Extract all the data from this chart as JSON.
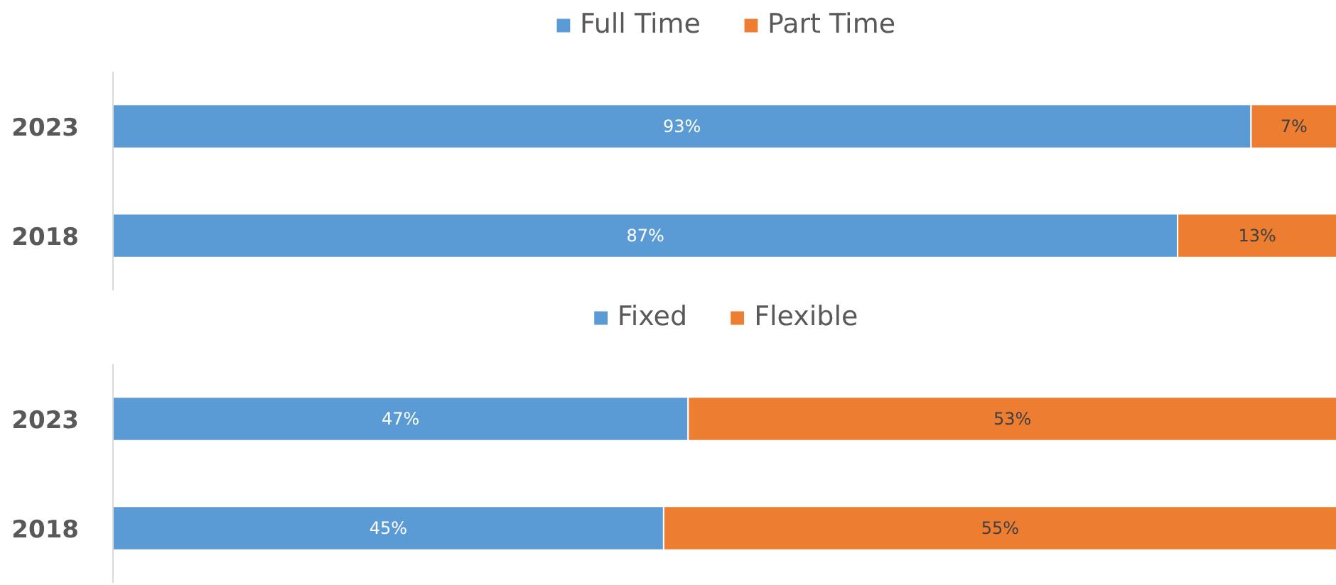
{
  "chart_data": [
    {
      "type": "bar",
      "orientation": "horizontal",
      "stacked": true,
      "categories": [
        "2023",
        "2018"
      ],
      "series": [
        {
          "name": "Full Time",
          "color": "#5b9bd5",
          "values": [
            93,
            87
          ],
          "value_labels": [
            "93%",
            "87%"
          ]
        },
        {
          "name": "Part Time",
          "color": "#ed7d31",
          "values": [
            7,
            13
          ],
          "value_labels": [
            "7%",
            "13%"
          ]
        }
      ],
      "legend": "top",
      "grid": false,
      "tick_labels": "y"
    },
    {
      "type": "bar",
      "orientation": "horizontal",
      "stacked": true,
      "categories": [
        "2023",
        "2018"
      ],
      "series": [
        {
          "name": "Fixed",
          "color": "#5b9bd5",
          "values": [
            47,
            45
          ],
          "value_labels": [
            "47%",
            "45%"
          ]
        },
        {
          "name": "Flexible",
          "color": "#ed7d31",
          "values": [
            53,
            55
          ],
          "value_labels": [
            "53%",
            "55%"
          ]
        }
      ],
      "legend": "top",
      "grid": false,
      "tick_labels": "y"
    }
  ]
}
